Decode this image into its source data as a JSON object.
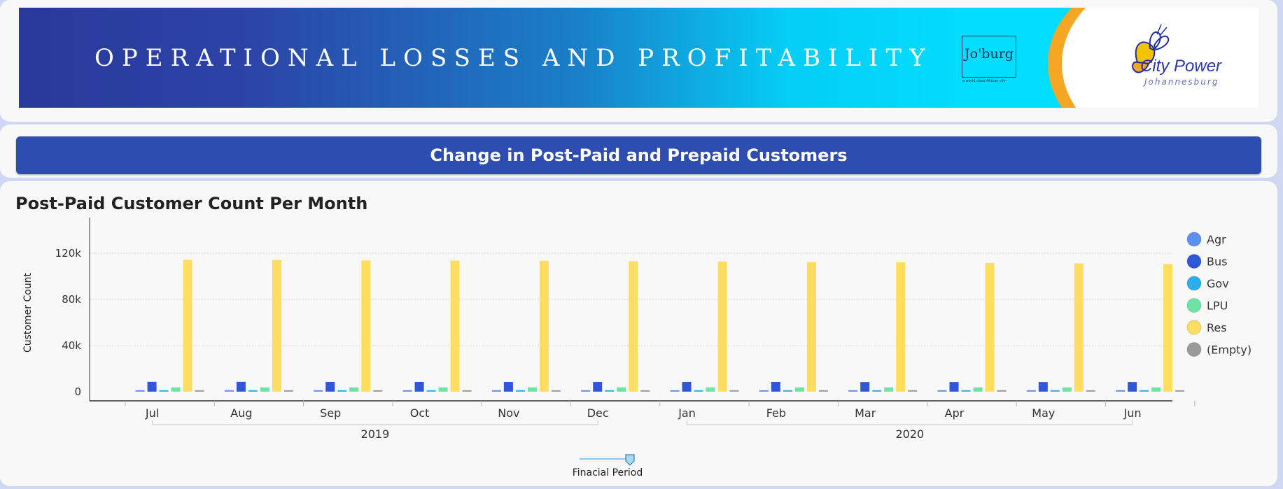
{
  "banner": {
    "title": "OPERATIONAL LOSSES AND PROFITABILITY",
    "joburg_logo": "Jo'burg",
    "joburg_tagline": "a world class African city",
    "city_power_name": "City Power",
    "city_power_sub": "Johannesburg"
  },
  "section_header": "Change in Post-Paid and Prepaid Customers",
  "colors": {
    "Agr": "#5b8ff0",
    "Bus": "#2f57d8",
    "Gov": "#2aaeee",
    "LPU": "#6ee3a4",
    "Res": "#ffdd5e",
    "Empty": "#9a9a9a"
  },
  "slider": {
    "label": "Finacial Period"
  },
  "chart_data": {
    "type": "bar",
    "title": "Post-Paid Customer Count Per Month",
    "ylabel": "Customer Count",
    "xlabel": "",
    "ylim": [
      -8000,
      145000
    ],
    "yticks": [
      {
        "value": 0,
        "label": "0"
      },
      {
        "value": 40000,
        "label": "40k"
      },
      {
        "value": 80000,
        "label": "80k"
      },
      {
        "value": 120000,
        "label": "120k"
      }
    ],
    "grid": true,
    "legend_position": "right",
    "categories": [
      "Jul",
      "Aug",
      "Sep",
      "Oct",
      "Nov",
      "Dec",
      "Jan",
      "Feb",
      "Mar",
      "Apr",
      "May",
      "Jun"
    ],
    "years": [
      {
        "label": "2019",
        "from": 0,
        "to": 5
      },
      {
        "label": "2020",
        "from": 6,
        "to": 11
      }
    ],
    "series": [
      {
        "name": "Agr",
        "values": [
          700,
          700,
          700,
          700,
          700,
          700,
          700,
          700,
          700,
          700,
          700,
          700
        ]
      },
      {
        "name": "Bus",
        "values": [
          8500,
          8500,
          8400,
          8400,
          8400,
          8400,
          8400,
          8400,
          8300,
          8300,
          8300,
          8300
        ]
      },
      {
        "name": "Gov",
        "values": [
          600,
          600,
          600,
          600,
          600,
          600,
          600,
          600,
          600,
          600,
          600,
          600
        ]
      },
      {
        "name": "LPU",
        "values": [
          3700,
          3700,
          3700,
          3700,
          3700,
          3700,
          3700,
          3700,
          3700,
          3700,
          3700,
          3700
        ]
      },
      {
        "name": "Res",
        "values": [
          114500,
          114300,
          113900,
          113800,
          113600,
          113200,
          112900,
          112500,
          112200,
          111700,
          111300,
          110800
        ]
      },
      {
        "name": "(Empty)",
        "values": [
          500,
          500,
          500,
          500,
          500,
          500,
          500,
          500,
          500,
          500,
          500,
          500
        ]
      }
    ]
  }
}
